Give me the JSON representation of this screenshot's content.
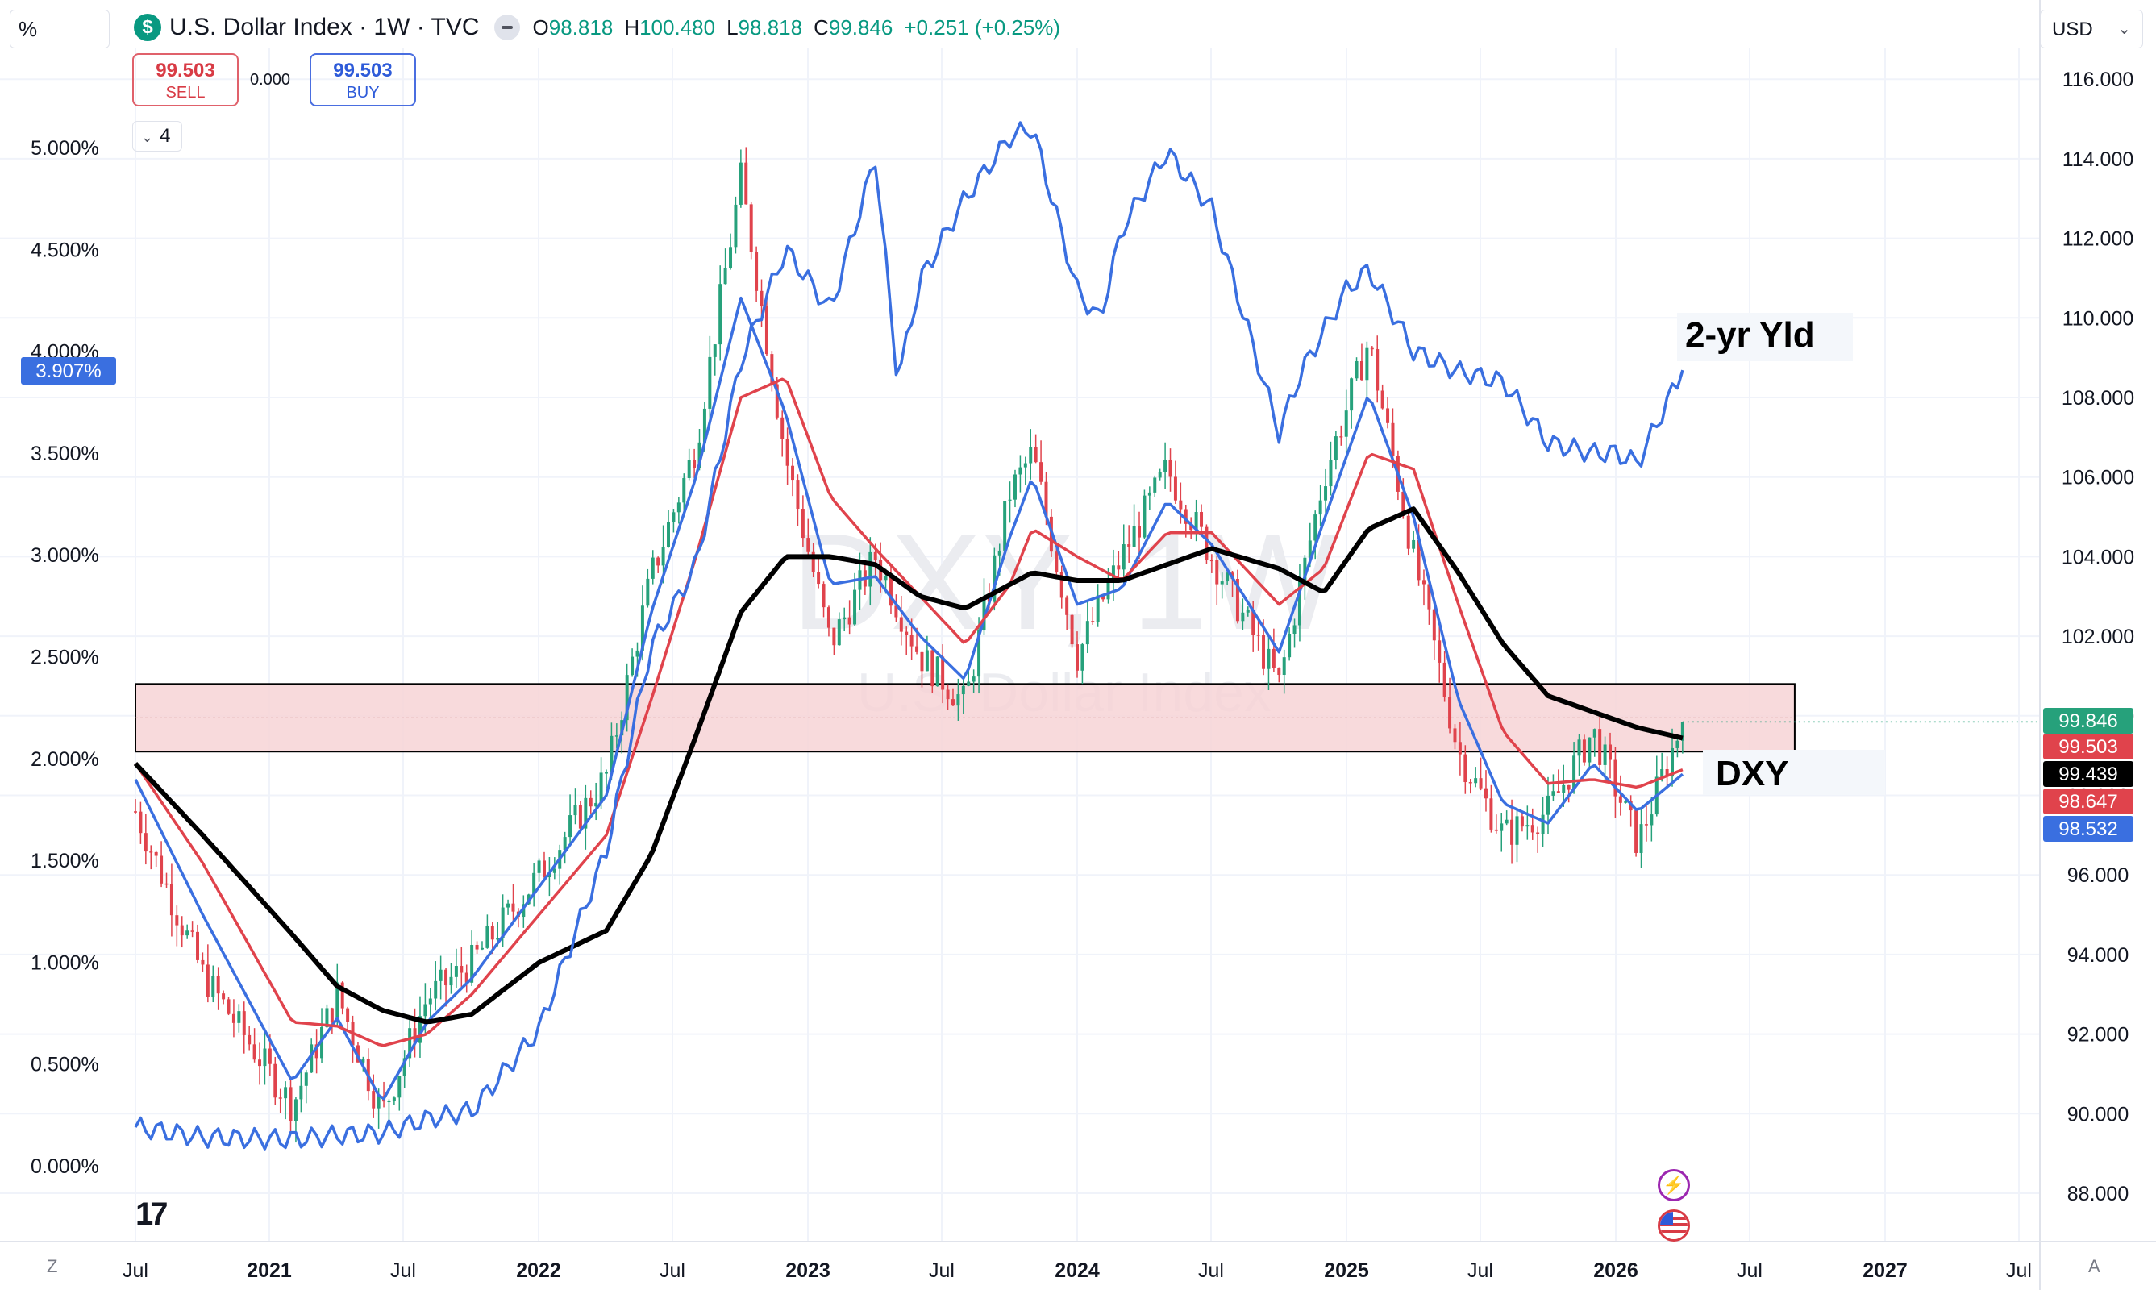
{
  "header": {
    "scale_mode": "%",
    "currency": "USD",
    "symbol_title": "U.S. Dollar Index · 1W · TVC",
    "symbol_icon": "dollar-icon",
    "ohlc": {
      "o_label": "O",
      "o": "98.818",
      "h_label": "H",
      "h": "100.480",
      "l_label": "L",
      "l": "98.818",
      "c_label": "C",
      "c": "99.846",
      "change": "+0.251 (+0.25%)"
    },
    "sell": {
      "price": "99.503",
      "label": "SELL"
    },
    "buy": {
      "price": "99.503",
      "label": "BUY"
    },
    "spread": "0.000",
    "indicators_count": "4"
  },
  "watermark": {
    "ticker": "DXY, 1W",
    "name": "U.S. Dollar Index"
  },
  "colors": {
    "up": "#26a17b",
    "down": "#e0434c",
    "yield": "#3a6fe0",
    "ma_fast": "#3a6fe0",
    "ma_mid": "#e0434c",
    "ma_slow": "#000000",
    "zone_fill": "#f7d3d6"
  },
  "chart_data": {
    "type": "candlestick",
    "title": "U.S. Dollar Index · 1W · TVC",
    "x_ticks": [
      "Jul",
      "2021",
      "Jul",
      "2022",
      "Jul",
      "2023",
      "Jul",
      "2024",
      "Jul",
      "2025",
      "Jul",
      "2026",
      "Jul",
      "2027",
      "Jul"
    ],
    "x_ticks_bold": [
      false,
      true,
      false,
      true,
      false,
      true,
      false,
      true,
      false,
      true,
      false,
      true,
      false,
      true,
      false
    ],
    "right_axis": {
      "label": "DXY",
      "range": [
        87,
        116.6
      ],
      "ticks": [
        "88.000",
        "90.000",
        "92.000",
        "94.000",
        "96.000",
        "98.000",
        "100.000",
        "102.000",
        "104.000",
        "106.000",
        "108.000",
        "110.000",
        "112.000",
        "114.000",
        "116.000"
      ]
    },
    "left_axis": {
      "label": "2-yr Yld",
      "range": [
        -0.3,
        5.45
      ],
      "ticks": [
        "0.000%",
        "0.500%",
        "1.000%",
        "1.500%",
        "2.000%",
        "2.500%",
        "3.000%",
        "3.500%",
        "4.000%",
        "4.500%",
        "5.000%"
      ]
    },
    "series": [
      {
        "name": "DXY",
        "kind": "candlestick",
        "x": [
          "2020-06",
          "2020-09",
          "2021-01",
          "2021-03",
          "2021-05",
          "2021-07",
          "2021-09",
          "2021-12",
          "2022-03",
          "2022-05",
          "2022-07",
          "2022-09",
          "2022-11",
          "2023-01",
          "2023-03",
          "2023-05",
          "2023-07",
          "2023-09",
          "2023-10",
          "2023-12",
          "2024-02",
          "2024-04",
          "2024-06",
          "2024-09",
          "2024-11",
          "2025-01",
          "2025-03",
          "2025-05",
          "2025-07",
          "2025-09",
          "2025-11",
          "2026-01",
          "2026-03"
        ],
        "close": [
          97.6,
          93.5,
          90.2,
          93.0,
          90.0,
          92.9,
          93.8,
          96.0,
          98.5,
          103.5,
          106.8,
          113.5,
          106.5,
          101.8,
          104.0,
          101.5,
          100.3,
          105.6,
          106.6,
          101.5,
          104.0,
          106.2,
          104.0,
          100.8,
          106.0,
          109.4,
          104.0,
          99.1,
          97.0,
          97.6,
          99.6,
          96.8,
          99.846
        ]
      },
      {
        "name": "MA fast",
        "kind": "line",
        "x": [
          "2020-06",
          "2020-09",
          "2021-01",
          "2021-03",
          "2021-05",
          "2021-07",
          "2021-09",
          "2021-12",
          "2022-03",
          "2022-05",
          "2022-07",
          "2022-09",
          "2022-11",
          "2023-01",
          "2023-03",
          "2023-05",
          "2023-07",
          "2023-09",
          "2023-10",
          "2023-12",
          "2024-02",
          "2024-04",
          "2024-06",
          "2024-09",
          "2024-11",
          "2025-01",
          "2025-03",
          "2025-05",
          "2025-07",
          "2025-09",
          "2025-11",
          "2026-01",
          "2026-03"
        ],
        "values": [
          98.4,
          95.0,
          90.8,
          92.4,
          90.3,
          92.3,
          93.4,
          95.7,
          98.0,
          102.6,
          106.0,
          110.5,
          107.6,
          103.3,
          103.5,
          102.0,
          100.9,
          104.5,
          106.0,
          102.8,
          103.2,
          105.4,
          104.3,
          101.6,
          104.9,
          108.1,
          105.0,
          100.4,
          97.8,
          97.3,
          98.8,
          97.6,
          98.532
        ]
      },
      {
        "name": "MA mid",
        "kind": "line",
        "x": [
          "2020-06",
          "2020-09",
          "2021-01",
          "2021-03",
          "2021-05",
          "2021-07",
          "2021-09",
          "2021-12",
          "2022-03",
          "2022-05",
          "2022-07",
          "2022-09",
          "2022-11",
          "2023-01",
          "2023-03",
          "2023-05",
          "2023-07",
          "2023-09",
          "2023-10",
          "2023-12",
          "2024-02",
          "2024-04",
          "2024-06",
          "2024-09",
          "2024-11",
          "2025-01",
          "2025-03",
          "2025-05",
          "2025-07",
          "2025-09",
          "2025-11",
          "2026-01",
          "2026-03"
        ],
        "values": [
          98.8,
          96.3,
          92.3,
          92.2,
          91.7,
          92.0,
          93.0,
          95.0,
          97.0,
          100.4,
          104.0,
          108.0,
          108.5,
          105.5,
          104.2,
          103.0,
          101.8,
          103.3,
          104.7,
          104.0,
          103.4,
          104.6,
          104.6,
          102.8,
          103.7,
          106.6,
          106.2,
          102.8,
          99.6,
          98.3,
          98.4,
          98.2,
          98.647
        ]
      },
      {
        "name": "MA slow",
        "kind": "line",
        "x": [
          "2020-06",
          "2020-09",
          "2021-01",
          "2021-03",
          "2021-05",
          "2021-07",
          "2021-09",
          "2021-12",
          "2022-03",
          "2022-05",
          "2022-07",
          "2022-09",
          "2022-11",
          "2023-01",
          "2023-03",
          "2023-05",
          "2023-07",
          "2023-09",
          "2023-10",
          "2023-12",
          "2024-02",
          "2024-04",
          "2024-06",
          "2024-09",
          "2024-11",
          "2025-01",
          "2025-03",
          "2025-05",
          "2025-07",
          "2025-09",
          "2025-11",
          "2026-01",
          "2026-03"
        ],
        "values": [
          98.8,
          97.0,
          94.5,
          93.2,
          92.6,
          92.3,
          92.5,
          93.8,
          94.6,
          96.5,
          99.5,
          102.6,
          104.0,
          104.0,
          103.8,
          103.0,
          102.7,
          103.3,
          103.6,
          103.4,
          103.4,
          103.8,
          104.2,
          103.7,
          103.1,
          104.7,
          105.2,
          103.6,
          101.8,
          100.5,
          100.1,
          99.7,
          99.439
        ]
      },
      {
        "name": "2-yr Yld",
        "kind": "line",
        "axis": "left",
        "x": [
          "2020-06",
          "2020-09",
          "2021-01",
          "2021-03",
          "2021-05",
          "2021-07",
          "2021-09",
          "2021-12",
          "2022-03",
          "2022-05",
          "2022-07",
          "2022-09",
          "2022-11",
          "2023-01",
          "2023-03",
          "2023-04",
          "2023-05",
          "2023-07",
          "2023-09",
          "2023-10",
          "2023-12",
          "2024-01",
          "2024-02",
          "2024-04",
          "2024-06",
          "2024-09",
          "2024-10",
          "2024-12",
          "2025-01",
          "2025-03",
          "2025-05",
          "2025-07",
          "2025-09",
          "2025-11",
          "2025-12",
          "2026-01",
          "2026-03"
        ],
        "values": [
          0.19,
          0.14,
          0.13,
          0.15,
          0.16,
          0.23,
          0.27,
          0.67,
          1.55,
          2.55,
          2.95,
          3.95,
          4.5,
          4.2,
          4.95,
          3.85,
          4.35,
          4.75,
          5.05,
          5.1,
          4.3,
          4.15,
          4.6,
          4.98,
          4.7,
          3.6,
          3.9,
          4.3,
          4.4,
          4.0,
          3.9,
          3.85,
          3.55,
          3.5,
          3.5,
          3.45,
          3.907
        ]
      }
    ],
    "resistance_zone": {
      "top": 100.8,
      "bottom": 99.1,
      "start": "2020-06",
      "end": "2026-08"
    },
    "price_labels_right": [
      {
        "value": "99.846",
        "color": "#26a17b"
      },
      {
        "value": "99.503",
        "color": "#e0434c"
      },
      {
        "value": "99.439",
        "color": "#000000"
      },
      {
        "value": "98.647",
        "color": "#e0434c"
      },
      {
        "value": "98.532",
        "color": "#3a6fe0"
      }
    ],
    "price_label_left": {
      "value": "3.907%",
      "color": "#3a6fe0"
    },
    "annotations": [
      {
        "text": "2-yr Yld"
      },
      {
        "text": "DXY"
      }
    ]
  },
  "bottom": {
    "zoom_label": "Z",
    "auto_label": "A",
    "logo": "tradingview-logo-icon"
  },
  "events": {
    "lightning": "lightning-icon",
    "flag": "us-flag-icon"
  }
}
